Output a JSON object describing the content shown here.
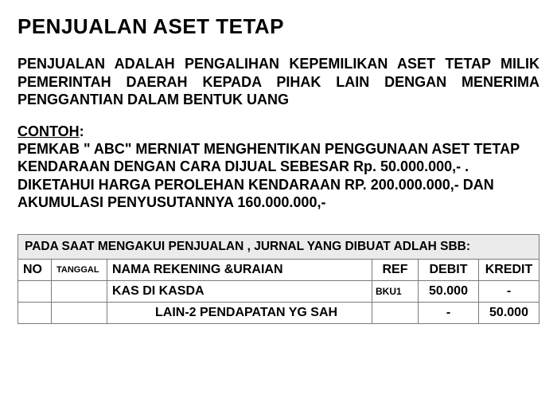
{
  "title": "PENJUALAN ASET TETAP",
  "definition": "PENJUALAN ADALAH PENGALIHAN KEPEMILIKAN ASET TETAP MILIK PEMERINTAH DAERAH KEPADA PIHAK LAIN DENGAN MENERIMA PENGGANTIAN DALAM BENTUK UANG",
  "example": {
    "label": "CONTOH",
    "colon": ":",
    "line1": "PEMKAB \" ABC\"  MERNIAT MENGHENTIKAN PENGGUNAAN ASET TETAP KENDARAAN DENGAN CARA DIJUAL SEBESAR Rp. 50.000.000,- .",
    "line2": "DIKETAHUI HARGA PEROLEHAN KENDARAAN RP. 200.000.000,- DAN AKUMULASI PENYUSUTANNYA  160.000.000,-"
  },
  "table": {
    "caption": "PADA SAAT MENGAKUI PENJUALAN  , JURNAL  YANG DIBUAT ADLAH SBB:",
    "headers": {
      "no": "NO",
      "tanggal": "TANGGAL",
      "nama": "NAMA REKENING &URAIAN",
      "ref": "REF",
      "debit": "DEBIT",
      "kredit": "KREDIT"
    },
    "rows": [
      {
        "no": "",
        "tanggal": "",
        "nama": "KAS DI KASDA",
        "ref": "BKU1",
        "debit": "50.000",
        "kredit": "-",
        "indent": false
      },
      {
        "no": "",
        "tanggal": "",
        "nama": "LAIN-2 PENDAPATAN YG SAH",
        "ref": "",
        "debit": "-",
        "kredit": "50.000",
        "indent": true
      }
    ]
  },
  "style": {
    "background": "#ffffff",
    "text_color": "#000000",
    "border_color": "#7a7a7a",
    "caption_bg": "#ebebeb",
    "title_fontsize": 26,
    "body_fontsize": 18,
    "caption_fontsize": 15.5,
    "cell_fontsize": 16
  }
}
